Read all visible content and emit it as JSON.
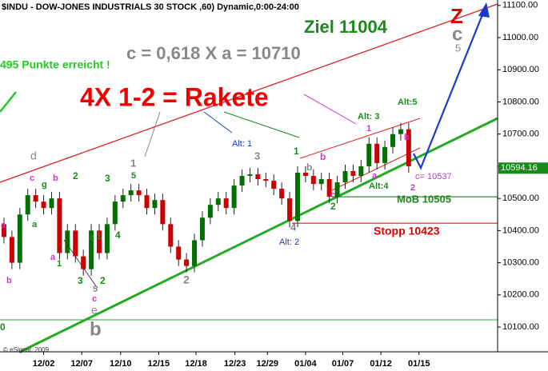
{
  "chart_data": {
    "type": "candlestick",
    "title": "$INDU - DOW-JONES INDUSTRIALS 30 STOCK ,60) Dynamic,0:00-24:00",
    "up_color": "#007000",
    "down_color": "#cc0000",
    "open": [
      10420,
      10380,
      10300,
      10450,
      10510,
      10490,
      10470,
      10500,
      10330,
      10400,
      10320,
      10280,
      10400,
      10330,
      10420,
      10490,
      10510,
      10525,
      10510,
      10470,
      10495,
      10420,
      10350,
      10310,
      10290,
      10370,
      10440,
      10480,
      10500,
      10470,
      10540,
      10570,
      10575,
      10560,
      10555,
      10530,
      10500,
      10430,
      10580,
      10570,
      10545,
      10560,
      10505,
      10550,
      10585,
      10570,
      10600,
      10670,
      10610,
      10660,
      10700,
      10715
    ],
    "high": [
      10440,
      10400,
      10470,
      10530,
      10530,
      10510,
      10520,
      10520,
      10420,
      10420,
      10340,
      10420,
      10420,
      10440,
      10510,
      10530,
      10545,
      10545,
      10530,
      10515,
      10515,
      10440,
      10370,
      10330,
      10390,
      10460,
      10500,
      10520,
      10520,
      10560,
      10590,
      10595,
      10595,
      10580,
      10575,
      10550,
      10520,
      10600,
      10600,
      10590,
      10580,
      10580,
      10570,
      10605,
      10605,
      10620,
      10690,
      10690,
      10680,
      10720,
      10735,
      10735
    ],
    "low": [
      10360,
      10280,
      10280,
      10430,
      10470,
      10450,
      10450,
      10310,
      10310,
      10300,
      10260,
      10260,
      10310,
      10310,
      10400,
      10470,
      10490,
      10490,
      10450,
      10450,
      10400,
      10330,
      10290,
      10270,
      10270,
      10350,
      10420,
      10460,
      10450,
      10450,
      10520,
      10550,
      10540,
      10535,
      10510,
      10480,
      10410,
      10410,
      10550,
      10525,
      10525,
      10485,
      10485,
      10530,
      10550,
      10550,
      10580,
      10590,
      10590,
      10640,
      10680,
      10580
    ],
    "close": [
      10380,
      10300,
      10450,
      10510,
      10490,
      10470,
      10500,
      10330,
      10400,
      10320,
      10280,
      10400,
      10330,
      10420,
      10490,
      10510,
      10525,
      10510,
      10470,
      10495,
      10420,
      10350,
      10310,
      10290,
      10370,
      10440,
      10480,
      10500,
      10470,
      10540,
      10570,
      10575,
      10560,
      10555,
      10530,
      10500,
      10430,
      10580,
      10570,
      10545,
      10560,
      10505,
      10550,
      10585,
      10570,
      10600,
      10670,
      10610,
      10660,
      10700,
      10715,
      10600
    ],
    "xlim": [
      -0.5,
      61.7
    ],
    "xticks": [
      {
        "value": 5,
        "label": "12/02"
      },
      {
        "value": 9.8,
        "label": "12/07"
      },
      {
        "value": 14.7,
        "label": "12/10"
      },
      {
        "value": 19.5,
        "label": "12/15"
      },
      {
        "value": 24.2,
        "label": "12/18"
      },
      {
        "value": 29.1,
        "label": "12/23"
      },
      {
        "value": 33.2,
        "label": "12/29"
      },
      {
        "value": 38,
        "label": "01/04"
      },
      {
        "value": 42.7,
        "label": "01/07"
      },
      {
        "value": 47.5,
        "label": "01/12"
      },
      {
        "value": 52.3,
        "label": "01/15"
      }
    ],
    "ylim": [
      10023,
      11117
    ],
    "yticks": [
      {
        "value": 10100,
        "label": "10100.00"
      },
      {
        "value": 10200,
        "label": "10200.00"
      },
      {
        "value": 10300,
        "label": "10300.00"
      },
      {
        "value": 10400,
        "label": "10400.00"
      },
      {
        "value": 10500,
        "label": "10500.00"
      },
      {
        "value": 10600,
        "label": "10600.00"
      },
      {
        "value": 10700,
        "label": "10700.00"
      },
      {
        "value": 10800,
        "label": "10800.00"
      },
      {
        "value": 10900,
        "label": "10900.00"
      },
      {
        "value": 11000,
        "label": "11000.00"
      },
      {
        "value": 11100,
        "label": "11100.00"
      }
    ],
    "last_price": 10594.16,
    "levels": [
      {
        "value": 10505,
        "color": "#007000"
      },
      {
        "value": 10423,
        "color": "#cc0000"
      }
    ],
    "annotations": [
      {
        "text": "Ziel 11004",
        "color": "#1a8a1a"
      },
      {
        "text": "Z",
        "color": "#e00000"
      },
      {
        "text": "c",
        "color": "#888888"
      },
      {
        "text": "5",
        "color": "#888888"
      },
      {
        "text": "c = 0,618 X a = 10710",
        "color": "#888888"
      },
      {
        "text": "495 Punkte erreicht !",
        "color": "#22cc22"
      },
      {
        "text": "4X 1-2 = Rakete",
        "color": "#ee0000"
      },
      {
        "text": "Alt: 3",
        "color": "#1a8a1a"
      },
      {
        "text": "Alt:5",
        "color": "#1a8a1a"
      },
      {
        "text": "1",
        "color": "#cc33cc"
      },
      {
        "text": "b",
        "color": "#cc33cc"
      },
      {
        "text": "Alt: 1",
        "color": "#1a3acc"
      },
      {
        "text": "1",
        "color": "#1a8a1a"
      },
      {
        "text": "3",
        "color": "#888888"
      },
      {
        "text": "d",
        "color": "#888888"
      },
      {
        "text": "1",
        "color": "#888888"
      },
      {
        "text": "5",
        "color": "#1a8a1a"
      },
      {
        "text": "c",
        "color": "#cc33cc"
      },
      {
        "text": "b",
        "color": "#cc33cc"
      },
      {
        "text": "g",
        "color": "#1a8a1a"
      },
      {
        "text": "2",
        "color": "#1a8a1a"
      },
      {
        "text": "3",
        "color": "#1a8a1a"
      },
      {
        "text": "b",
        "color": "#cc33cc"
      },
      {
        "text": "b",
        "color": "#888888"
      },
      {
        "text": "c",
        "color": "#cc33cc"
      },
      {
        "text": "2",
        "color": "#1a8a1a"
      },
      {
        "text": "a",
        "color": "#cc33cc"
      },
      {
        "text": "Alt:4",
        "color": "#1a8a1a"
      },
      {
        "text": "c= 10537",
        "color": "#cc33cc"
      },
      {
        "text": "2",
        "color": "#cc33cc"
      },
      {
        "text": "MoB 10505",
        "color": "#1a8a1a"
      },
      {
        "text": "Stopp 10423",
        "color": "#dd0000"
      },
      {
        "text": "4",
        "color": "#888888"
      },
      {
        "text": "Alt: 2",
        "color": "#1a3acc"
      },
      {
        "text": "2",
        "color": "#888888"
      },
      {
        "text": "b",
        "color": "#888888"
      },
      {
        "text": "e",
        "color": "#888888"
      },
      {
        "text": "c",
        "color": "#cc33cc"
      },
      {
        "text": "5",
        "color": "#888888"
      },
      {
        "text": "3",
        "color": "#1a8a1a"
      },
      {
        "text": "2",
        "color": "#1a8a1a"
      },
      {
        "text": "1",
        "color": "#1a8a1a"
      },
      {
        "text": "a",
        "color": "#cc33cc"
      },
      {
        "text": "4",
        "color": "#1a8a1a"
      },
      {
        "text": "1",
        "color": "#1a8a1a"
      },
      {
        "text": "4",
        "color": "#1a8a1a"
      },
      {
        "text": "a",
        "color": "#1a8a1a"
      },
      {
        "text": "a",
        "color": "#cc33cc"
      },
      {
        "text": "b",
        "color": "#cc33cc"
      },
      {
        "text": "0",
        "color": "#1a8a1a"
      },
      {
        "text": "© eSignal, 2009",
        "color": "#333333"
      }
    ]
  }
}
